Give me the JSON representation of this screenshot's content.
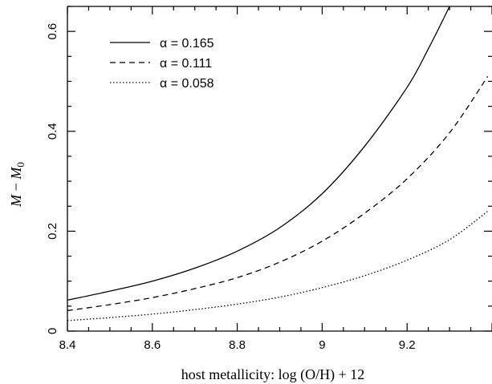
{
  "chart_data": {
    "type": "line",
    "xlabel": "host metallicity: log (O/H) + 12",
    "ylabel_main": "M",
    "ylabel_sub": "0",
    "xlim": [
      8.4,
      9.4
    ],
    "ylim": [
      0,
      0.65
    ],
    "xticks": [
      8.4,
      8.6,
      8.8,
      9.0,
      9.2
    ],
    "xtick_labels": [
      "8.4",
      "8.6",
      "8.8",
      "9",
      "9.2"
    ],
    "yticks": [
      0,
      0.2,
      0.4,
      0.6
    ],
    "ytick_labels": [
      "0",
      "0.2",
      "0.4",
      "0.6"
    ],
    "grid": false,
    "legend_position": "top-left",
    "series": [
      {
        "name": "α = 0.165",
        "line_style": "solid",
        "x": [
          8.4,
          8.5,
          8.6,
          8.7,
          8.8,
          8.9,
          9.0,
          9.1,
          9.2,
          9.25,
          9.3,
          9.31
        ],
        "y": [
          0.062,
          0.08,
          0.1,
          0.126,
          0.16,
          0.207,
          0.275,
          0.37,
          0.488,
          0.565,
          0.65,
          0.67
        ]
      },
      {
        "name": "α = 0.111",
        "line_style": "dashed",
        "x": [
          8.4,
          8.5,
          8.6,
          8.7,
          8.8,
          8.9,
          9.0,
          9.1,
          9.2,
          9.3,
          9.39
        ],
        "y": [
          0.041,
          0.053,
          0.067,
          0.085,
          0.107,
          0.138,
          0.18,
          0.236,
          0.305,
          0.397,
          0.51
        ]
      },
      {
        "name": "α = 0.058",
        "line_style": "dotted",
        "x": [
          8.4,
          8.5,
          8.6,
          8.7,
          8.8,
          8.9,
          9.0,
          9.1,
          9.2,
          9.3,
          9.39
        ],
        "y": [
          0.021,
          0.027,
          0.034,
          0.043,
          0.054,
          0.068,
          0.087,
          0.111,
          0.142,
          0.183,
          0.24
        ]
      }
    ]
  }
}
